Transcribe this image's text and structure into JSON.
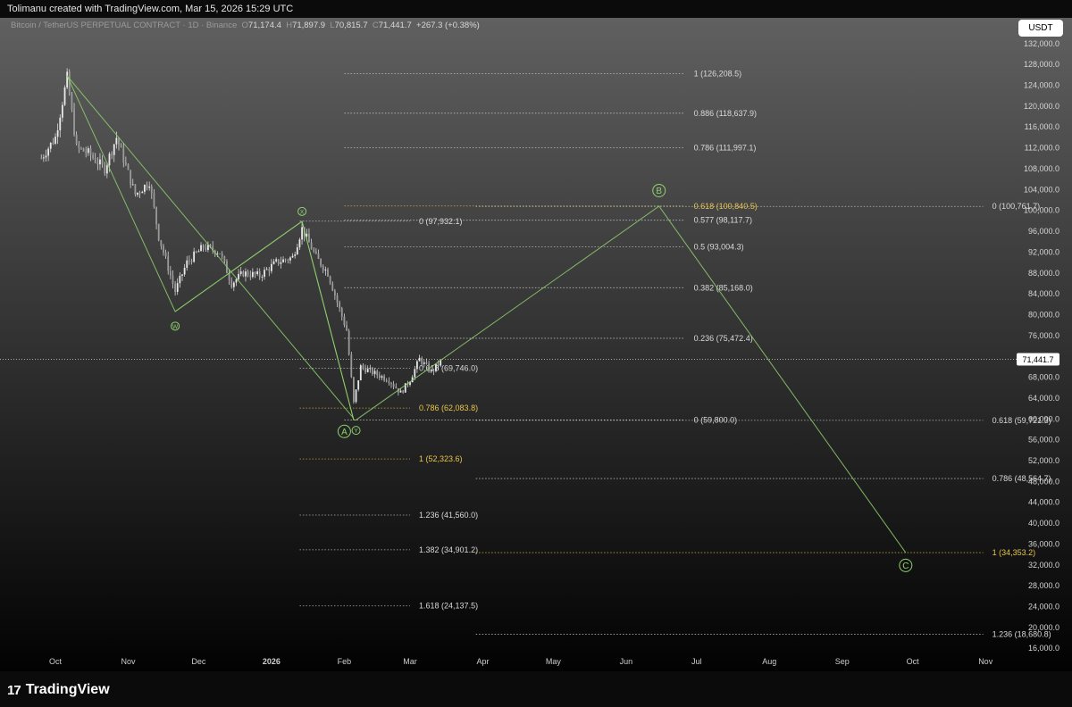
{
  "header": {
    "attribution": "Tolimanu created with TradingView.com, Mar 15, 2026 15:29 UTC"
  },
  "symbol": {
    "name": "Bitcoin / TetherUS PERPETUAL CONTRACT · 1D · Binance",
    "o_label": "O",
    "open": "71,174.4",
    "h_label": "H",
    "high": "71,897.9",
    "l_label": "L",
    "low": "70,815.7",
    "c_label": "C",
    "close": "71,441.7",
    "change": "+267.3 (+0.38%)"
  },
  "currency": "USDT",
  "footer": {
    "logo_text": "TradingView",
    "logo_mark": "17"
  },
  "colors": {
    "background_top": "#606060",
    "background_bottom": "#020202",
    "wave_line": "#8fd16e",
    "fib_white": "#d9d9d9",
    "fib_gold": "#e8c54a",
    "candle": "#e8e8e8"
  },
  "chart_data": {
    "type": "candlestick",
    "title": "",
    "xlabel": "",
    "ylabel": "",
    "ylim": [
      15000,
      134000
    ],
    "y_ticks": [
      "132,000.0",
      "128,000.0",
      "124,000.0",
      "120,000.0",
      "116,000.0",
      "112,000.0",
      "108,000.0",
      "104,000.0",
      "100,000.0",
      "96,000.0",
      "92,000.0",
      "88,000.0",
      "84,000.0",
      "80,000.0",
      "76,000.0",
      "72,000.0",
      "68,000.0",
      "64,000.0",
      "60,000.0",
      "56,000.0",
      "52,000.0",
      "48,000.0",
      "44,000.0",
      "40,000.0",
      "36,000.0",
      "32,000.0",
      "28,000.0",
      "24,000.0",
      "20,000.0",
      "16,000.0"
    ],
    "y_tick_values": [
      132000,
      128000,
      124000,
      120000,
      116000,
      112000,
      108000,
      104000,
      100000,
      96000,
      92000,
      88000,
      84000,
      80000,
      76000,
      72000,
      68000,
      64000,
      60000,
      56000,
      52000,
      48000,
      44000,
      40000,
      36000,
      32000,
      28000,
      24000,
      20000,
      16000
    ],
    "x_ticks": [
      {
        "label": "Oct",
        "date": "2025-10-01",
        "bold": false
      },
      {
        "label": "Nov",
        "date": "2025-11-01",
        "bold": false
      },
      {
        "label": "Dec",
        "date": "2025-12-01",
        "bold": false
      },
      {
        "label": "2026",
        "date": "2026-01-01",
        "bold": true
      },
      {
        "label": "Feb",
        "date": "2026-02-01",
        "bold": false
      },
      {
        "label": "Mar",
        "date": "2026-03-01",
        "bold": false
      },
      {
        "label": "Apr",
        "date": "2026-04-01",
        "bold": false
      },
      {
        "label": "May",
        "date": "2026-05-01",
        "bold": false
      },
      {
        "label": "Jun",
        "date": "2026-06-01",
        "bold": false
      },
      {
        "label": "Jul",
        "date": "2026-07-01",
        "bold": false
      },
      {
        "label": "Aug",
        "date": "2026-08-01",
        "bold": false
      },
      {
        "label": "Sep",
        "date": "2026-09-01",
        "bold": false
      },
      {
        "label": "Oct",
        "date": "2026-10-01",
        "bold": false
      },
      {
        "label": "Nov",
        "date": "2026-11-01",
        "bold": false
      }
    ],
    "last_price": {
      "value": 71441.7,
      "label": "71,441.7"
    },
    "price_path": [
      {
        "date": "2025-09-25",
        "close": 110000
      },
      {
        "date": "2025-10-01",
        "close": 114000
      },
      {
        "date": "2025-10-06",
        "close": 125500
      },
      {
        "date": "2025-10-10",
        "close": 112000
      },
      {
        "date": "2025-10-15",
        "close": 111000
      },
      {
        "date": "2025-10-22",
        "close": 108000
      },
      {
        "date": "2025-10-27",
        "close": 114000
      },
      {
        "date": "2025-11-04",
        "close": 103000
      },
      {
        "date": "2025-11-10",
        "close": 105500
      },
      {
        "date": "2025-11-14",
        "close": 95000
      },
      {
        "date": "2025-11-21",
        "close": 84500
      },
      {
        "date": "2025-11-26",
        "close": 90000
      },
      {
        "date": "2025-12-03",
        "close": 93000
      },
      {
        "date": "2025-12-10",
        "close": 92000
      },
      {
        "date": "2025-12-15",
        "close": 86000
      },
      {
        "date": "2025-12-20",
        "close": 88000
      },
      {
        "date": "2025-12-27",
        "close": 87500
      },
      {
        "date": "2026-01-03",
        "close": 90000
      },
      {
        "date": "2026-01-10",
        "close": 91000
      },
      {
        "date": "2026-01-14",
        "close": 96500
      },
      {
        "date": "2026-01-20",
        "close": 91000
      },
      {
        "date": "2026-01-25",
        "close": 88000
      },
      {
        "date": "2026-01-30",
        "close": 81000
      },
      {
        "date": "2026-02-02",
        "close": 77000
      },
      {
        "date": "2026-02-05",
        "close": 63000
      },
      {
        "date": "2026-02-08",
        "close": 70000
      },
      {
        "date": "2026-02-15",
        "close": 68500
      },
      {
        "date": "2026-02-20",
        "close": 67500
      },
      {
        "date": "2026-02-25",
        "close": 65000
      },
      {
        "date": "2026-03-01",
        "close": 67500
      },
      {
        "date": "2026-03-05",
        "close": 71500
      },
      {
        "date": "2026-03-10",
        "close": 69000
      },
      {
        "date": "2026-03-15",
        "close": 71441.7
      }
    ],
    "elliott_wave": {
      "points": [
        {
          "date": "2025-10-06",
          "price": 125800
        },
        {
          "date": "2025-11-21",
          "price": 80600
        },
        {
          "date": "2026-01-14",
          "price": 97900
        },
        {
          "date": "2026-02-05",
          "price": 59800
        },
        {
          "date": "2026-02-06",
          "price": 59800
        },
        {
          "date": "2026-06-15",
          "price": 100800
        },
        {
          "date": "2026-09-28",
          "price": 34353.2
        }
      ],
      "corrective_lines": [
        {
          "from": {
            "date": "2025-10-06",
            "price": 125800
          },
          "to": {
            "date": "2026-02-05",
            "price": 60100
          }
        },
        {
          "from": {
            "date": "2025-11-21",
            "price": 80600
          },
          "to": {
            "date": "2026-01-14",
            "price": 97900
          }
        },
        {
          "from": {
            "date": "2026-01-14",
            "price": 97900
          },
          "to": {
            "date": "2026-02-05",
            "price": 59800
          }
        }
      ],
      "labels": [
        {
          "text": "W",
          "date": "2025-11-21",
          "price": 77800
        },
        {
          "text": "X",
          "date": "2026-01-14",
          "price": 99800
        },
        {
          "text": "Y",
          "date": "2026-02-06",
          "price": 57800
        },
        {
          "text": "A",
          "date": "2026-02-01",
          "price": 57600
        },
        {
          "text": "B",
          "date": "2026-06-15",
          "price": 103800
        },
        {
          "text": "C",
          "date": "2026-09-28",
          "price": 31900
        }
      ]
    },
    "fib_levels": [
      {
        "text": "1 (126,208.5)",
        "price": 126208.5,
        "from": "2026-02-01",
        "to": "2026-06-26",
        "color": "white"
      },
      {
        "text": "0.886 (118,637.9)",
        "price": 118637.9,
        "from": "2026-02-01",
        "to": "2026-06-26",
        "color": "white"
      },
      {
        "text": "0.786 (111,997.1)",
        "price": 111997.1,
        "from": "2026-02-01",
        "to": "2026-06-26",
        "color": "white"
      },
      {
        "text": "0.618 (100,840.5)",
        "price": 100840.5,
        "from": "2026-02-01",
        "to": "2026-06-26",
        "color": "gold"
      },
      {
        "text": "0.577 (98,117.7)",
        "price": 98117.7,
        "from": "2026-02-01",
        "to": "2026-06-26",
        "color": "white"
      },
      {
        "text": "0.5 (93,004.3)",
        "price": 93004.3,
        "from": "2026-02-01",
        "to": "2026-06-26",
        "color": "white"
      },
      {
        "text": "0.382 (85,168.0)",
        "price": 85168.0,
        "from": "2026-02-01",
        "to": "2026-06-26",
        "color": "white"
      },
      {
        "text": "0.236 (75,472.4)",
        "price": 75472.4,
        "from": "2026-02-01",
        "to": "2026-06-26",
        "color": "white"
      },
      {
        "text": "0 (59,800.0)",
        "price": 59800.0,
        "from": "2026-02-01",
        "to": "2026-06-26",
        "color": "white"
      },
      {
        "text": "0 (97,932.1)",
        "price": 97932.1,
        "from": "2026-01-13",
        "to": "2026-03-01",
        "color": "white"
      },
      {
        "text": "0.618 (69,746.0)",
        "price": 69746.0,
        "from": "2026-01-13",
        "to": "2026-03-01",
        "color": "white"
      },
      {
        "text": "0.786 (62,083.8)",
        "price": 62083.8,
        "from": "2026-01-13",
        "to": "2026-03-01",
        "color": "gold"
      },
      {
        "text": "1 (52,323.6)",
        "price": 52323.6,
        "from": "2026-01-13",
        "to": "2026-03-01",
        "color": "gold"
      },
      {
        "text": "1.236 (41,560.0)",
        "price": 41560.0,
        "from": "2026-01-13",
        "to": "2026-03-01",
        "color": "white"
      },
      {
        "text": "1.382 (34,901.2)",
        "price": 34901.2,
        "from": "2026-01-13",
        "to": "2026-03-01",
        "color": "white"
      },
      {
        "text": "1.618 (24,137.5)",
        "price": 24137.5,
        "from": "2026-01-13",
        "to": "2026-03-01",
        "color": "white"
      },
      {
        "text": "0 (100,761.7)",
        "price": 100761.7,
        "from": "2026-03-29",
        "to": "2026-10-31",
        "color": "white"
      },
      {
        "text": "0.618 (59,721.3)",
        "price": 59721.3,
        "from": "2026-03-29",
        "to": "2026-10-31",
        "color": "white"
      },
      {
        "text": "0.786 (48,564.7)",
        "price": 48564.7,
        "from": "2026-03-29",
        "to": "2026-10-31",
        "color": "white"
      },
      {
        "text": "1 (34,353.2)",
        "price": 34353.2,
        "from": "2026-03-29",
        "to": "2026-10-31",
        "color": "gold"
      },
      {
        "text": "1.236 (18,680.8)",
        "price": 18680.8,
        "from": "2026-03-29",
        "to": "2026-10-31",
        "color": "white"
      }
    ]
  }
}
